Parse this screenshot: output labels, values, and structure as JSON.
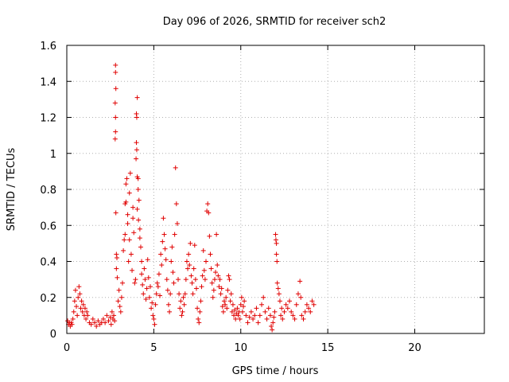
{
  "chart_data": {
    "type": "scatter",
    "title": "Day 096 of 2026, SRMTID for receiver sch2",
    "xlabel": "GPS time / hours",
    "ylabel": "SRMTID / TECUs",
    "xlim": [
      0,
      24
    ],
    "ylim": [
      0,
      1.6
    ],
    "x_ticks": [
      0,
      5,
      10,
      15,
      20
    ],
    "x_tick_labels": [
      "0",
      "5",
      "10",
      "15",
      "20"
    ],
    "y_ticks": [
      0,
      0.2,
      0.4,
      0.6,
      0.8,
      1.0,
      1.2,
      1.4,
      1.6
    ],
    "y_tick_labels": [
      "0",
      "0.2",
      "0.4",
      "0.6",
      "0.8",
      "1",
      "1.2",
      "1.4",
      "1.6"
    ],
    "grid": true,
    "marker": "+",
    "marker_color": "#e00000",
    "series": [
      {
        "name": "sch2",
        "points": [
          [
            0.05,
            0.07
          ],
          [
            0.1,
            0.05
          ],
          [
            0.15,
            0.06
          ],
          [
            0.2,
            0.04
          ],
          [
            0.25,
            0.06
          ],
          [
            0.3,
            0.05
          ],
          [
            0.35,
            0.08
          ],
          [
            0.4,
            0.12
          ],
          [
            0.45,
            0.18
          ],
          [
            0.5,
            0.24
          ],
          [
            0.55,
            0.15
          ],
          [
            0.6,
            0.1
          ],
          [
            0.65,
            0.2
          ],
          [
            0.7,
            0.26
          ],
          [
            0.75,
            0.22
          ],
          [
            0.8,
            0.14
          ],
          [
            0.85,
            0.18
          ],
          [
            0.9,
            0.12
          ],
          [
            0.95,
            0.16
          ],
          [
            1.0,
            0.1
          ],
          [
            1.05,
            0.14
          ],
          [
            1.1,
            0.08
          ],
          [
            1.15,
            0.12
          ],
          [
            1.2,
            0.1
          ],
          [
            1.3,
            0.06
          ],
          [
            1.4,
            0.05
          ],
          [
            1.5,
            0.08
          ],
          [
            1.6,
            0.06
          ],
          [
            1.7,
            0.04
          ],
          [
            1.8,
            0.07
          ],
          [
            1.9,
            0.05
          ],
          [
            2.0,
            0.06
          ],
          [
            2.1,
            0.08
          ],
          [
            2.2,
            0.06
          ],
          [
            2.3,
            0.1
          ],
          [
            2.4,
            0.07
          ],
          [
            2.5,
            0.09
          ],
          [
            2.55,
            0.05
          ],
          [
            2.6,
            0.12
          ],
          [
            2.65,
            0.08
          ],
          [
            2.7,
            0.1
          ],
          [
            2.75,
            0.07
          ],
          [
            2.8,
            1.49
          ],
          [
            2.8,
            1.45
          ],
          [
            2.82,
            1.36
          ],
          [
            2.78,
            1.28
          ],
          [
            2.8,
            1.2
          ],
          [
            2.8,
            1.12
          ],
          [
            2.78,
            1.08
          ],
          [
            2.82,
            0.67
          ],
          [
            2.85,
            0.44
          ],
          [
            2.88,
            0.42
          ],
          [
            2.85,
            0.36
          ],
          [
            2.9,
            0.31
          ],
          [
            2.95,
            0.18
          ],
          [
            3.0,
            0.24
          ],
          [
            3.05,
            0.15
          ],
          [
            3.1,
            0.12
          ],
          [
            3.15,
            0.2
          ],
          [
            3.2,
            0.28
          ],
          [
            3.25,
            0.46
          ],
          [
            3.3,
            0.52
          ],
          [
            3.35,
            0.55
          ],
          [
            3.35,
            0.72
          ],
          [
            3.4,
            0.73
          ],
          [
            3.4,
            0.83
          ],
          [
            3.45,
            0.86
          ],
          [
            3.5,
            0.61
          ],
          [
            3.5,
            0.66
          ],
          [
            3.55,
            0.4
          ],
          [
            3.6,
            0.52
          ],
          [
            3.6,
            0.78
          ],
          [
            3.65,
            0.89
          ],
          [
            3.7,
            0.44
          ],
          [
            3.75,
            0.35
          ],
          [
            3.8,
            0.64
          ],
          [
            3.8,
            0.7
          ],
          [
            3.85,
            0.56
          ],
          [
            3.9,
            0.28
          ],
          [
            3.95,
            0.3
          ],
          [
            4.0,
            1.22
          ],
          [
            4.02,
            1.2
          ],
          [
            4.05,
            1.31
          ],
          [
            4.0,
            1.06
          ],
          [
            4.02,
            1.02
          ],
          [
            3.98,
            0.97
          ],
          [
            4.05,
            0.87
          ],
          [
            4.1,
            0.86
          ],
          [
            4.1,
            0.8
          ],
          [
            4.15,
            0.74
          ],
          [
            4.05,
            0.69
          ],
          [
            4.12,
            0.63
          ],
          [
            4.2,
            0.58
          ],
          [
            4.2,
            0.53
          ],
          [
            4.25,
            0.48
          ],
          [
            4.3,
            0.4
          ],
          [
            4.3,
            0.33
          ],
          [
            4.35,
            0.27
          ],
          [
            4.4,
            0.22
          ],
          [
            4.45,
            0.36
          ],
          [
            4.5,
            0.3
          ],
          [
            4.55,
            0.19
          ],
          [
            4.6,
            0.25
          ],
          [
            4.65,
            0.41
          ],
          [
            4.7,
            0.31
          ],
          [
            4.75,
            0.2
          ],
          [
            4.8,
            0.26
          ],
          [
            4.85,
            0.14
          ],
          [
            4.9,
            0.17
          ],
          [
            4.95,
            0.1
          ],
          [
            5.0,
            0.08
          ],
          [
            5.05,
            0.05
          ],
          [
            5.1,
            0.16
          ],
          [
            5.15,
            0.22
          ],
          [
            5.2,
            0.28
          ],
          [
            5.25,
            0.26
          ],
          [
            5.3,
            0.33
          ],
          [
            5.35,
            0.21
          ],
          [
            5.4,
            0.44
          ],
          [
            5.45,
            0.38
          ],
          [
            5.5,
            0.51
          ],
          [
            5.55,
            0.64
          ],
          [
            5.6,
            0.55
          ],
          [
            5.65,
            0.47
          ],
          [
            5.7,
            0.41
          ],
          [
            5.75,
            0.3
          ],
          [
            5.8,
            0.24
          ],
          [
            5.85,
            0.16
          ],
          [
            5.9,
            0.12
          ],
          [
            5.95,
            0.22
          ],
          [
            6.0,
            0.4
          ],
          [
            6.05,
            0.48
          ],
          [
            6.1,
            0.34
          ],
          [
            6.15,
            0.28
          ],
          [
            6.2,
            0.55
          ],
          [
            6.25,
            0.92
          ],
          [
            6.3,
            0.72
          ],
          [
            6.35,
            0.61
          ],
          [
            6.4,
            0.3
          ],
          [
            6.45,
            0.22
          ],
          [
            6.5,
            0.14
          ],
          [
            6.55,
            0.18
          ],
          [
            6.6,
            0.1
          ],
          [
            6.65,
            0.12
          ],
          [
            6.7,
            0.2
          ],
          [
            6.75,
            0.16
          ],
          [
            6.8,
            0.22
          ],
          [
            6.85,
            0.3
          ],
          [
            6.9,
            0.4
          ],
          [
            6.95,
            0.36
          ],
          [
            7.0,
            0.44
          ],
          [
            7.05,
            0.38
          ],
          [
            7.1,
            0.5
          ],
          [
            7.15,
            0.32
          ],
          [
            7.2,
            0.28
          ],
          [
            7.25,
            0.22
          ],
          [
            7.3,
            0.36
          ],
          [
            7.35,
            0.49
          ],
          [
            7.4,
            0.3
          ],
          [
            7.45,
            0.25
          ],
          [
            7.5,
            0.14
          ],
          [
            7.55,
            0.08
          ],
          [
            7.6,
            0.06
          ],
          [
            7.65,
            0.12
          ],
          [
            7.7,
            0.18
          ],
          [
            7.75,
            0.26
          ],
          [
            7.8,
            0.32
          ],
          [
            7.85,
            0.46
          ],
          [
            7.9,
            0.35
          ],
          [
            7.95,
            0.3
          ],
          [
            8.0,
            0.4
          ],
          [
            8.05,
            0.68
          ],
          [
            8.1,
            0.72
          ],
          [
            8.15,
            0.67
          ],
          [
            8.2,
            0.54
          ],
          [
            8.25,
            0.44
          ],
          [
            8.3,
            0.36
          ],
          [
            8.35,
            0.28
          ],
          [
            8.4,
            0.2
          ],
          [
            8.45,
            0.24
          ],
          [
            8.5,
            0.3
          ],
          [
            8.55,
            0.34
          ],
          [
            8.6,
            0.55
          ],
          [
            8.65,
            0.38
          ],
          [
            8.7,
            0.32
          ],
          [
            8.75,
            0.26
          ],
          [
            8.8,
            0.3
          ],
          [
            8.85,
            0.22
          ],
          [
            8.9,
            0.25
          ],
          [
            8.95,
            0.15
          ],
          [
            9.0,
            0.12
          ],
          [
            9.05,
            0.18
          ],
          [
            9.1,
            0.16
          ],
          [
            9.15,
            0.2
          ],
          [
            9.2,
            0.14
          ],
          [
            9.25,
            0.24
          ],
          [
            9.3,
            0.32
          ],
          [
            9.35,
            0.3
          ],
          [
            9.4,
            0.18
          ],
          [
            9.45,
            0.22
          ],
          [
            9.5,
            0.12
          ],
          [
            9.55,
            0.16
          ],
          [
            9.6,
            0.1
          ],
          [
            9.65,
            0.13
          ],
          [
            9.7,
            0.08
          ],
          [
            9.75,
            0.11
          ],
          [
            9.8,
            0.14
          ],
          [
            9.85,
            0.1
          ],
          [
            9.9,
            0.12
          ],
          [
            9.95,
            0.08
          ],
          [
            10.0,
            0.16
          ],
          [
            10.05,
            0.2
          ],
          [
            10.1,
            0.12
          ],
          [
            10.15,
            0.15
          ],
          [
            10.2,
            0.18
          ],
          [
            10.3,
            0.1
          ],
          [
            10.4,
            0.06
          ],
          [
            10.5,
            0.09
          ],
          [
            10.6,
            0.12
          ],
          [
            10.7,
            0.08
          ],
          [
            10.8,
            0.1
          ],
          [
            10.9,
            0.14
          ],
          [
            11.0,
            0.06
          ],
          [
            11.1,
            0.1
          ],
          [
            11.2,
            0.16
          ],
          [
            11.3,
            0.2
          ],
          [
            11.4,
            0.12
          ],
          [
            11.5,
            0.08
          ],
          [
            11.6,
            0.14
          ],
          [
            11.7,
            0.1
          ],
          [
            11.75,
            0.04
          ],
          [
            11.8,
            0.02
          ],
          [
            11.85,
            0.06
          ],
          [
            11.9,
            0.09
          ],
          [
            11.95,
            0.12
          ],
          [
            12.0,
            0.55
          ],
          [
            12.02,
            0.52
          ],
          [
            12.05,
            0.5
          ],
          [
            12.05,
            0.44
          ],
          [
            12.08,
            0.4
          ],
          [
            12.1,
            0.28
          ],
          [
            12.15,
            0.25
          ],
          [
            12.2,
            0.22
          ],
          [
            12.25,
            0.18
          ],
          [
            12.3,
            0.1
          ],
          [
            12.35,
            0.14
          ],
          [
            12.4,
            0.08
          ],
          [
            12.5,
            0.12
          ],
          [
            12.6,
            0.16
          ],
          [
            12.7,
            0.14
          ],
          [
            12.8,
            0.18
          ],
          [
            12.9,
            0.12
          ],
          [
            13.0,
            0.1
          ],
          [
            13.1,
            0.08
          ],
          [
            13.2,
            0.16
          ],
          [
            13.3,
            0.22
          ],
          [
            13.4,
            0.29
          ],
          [
            13.45,
            0.2
          ],
          [
            13.5,
            0.1
          ],
          [
            13.6,
            0.08
          ],
          [
            13.7,
            0.12
          ],
          [
            13.8,
            0.16
          ],
          [
            13.9,
            0.14
          ],
          [
            14.0,
            0.12
          ],
          [
            14.1,
            0.18
          ],
          [
            14.2,
            0.16
          ]
        ]
      }
    ]
  }
}
